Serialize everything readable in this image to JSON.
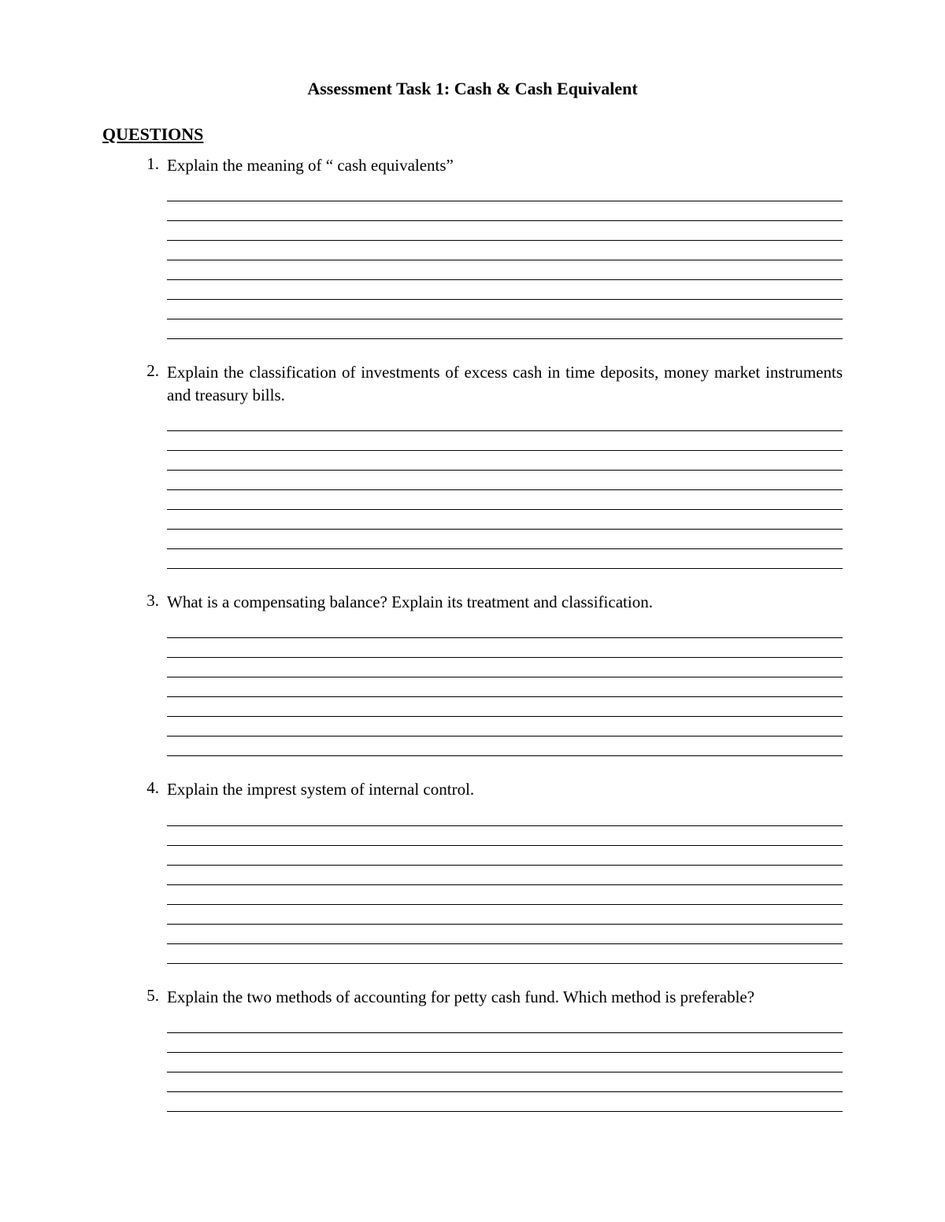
{
  "document": {
    "title": "Assessment Task 1: Cash & Cash Equivalent",
    "section_header": "QUESTIONS",
    "font_family": "Times New Roman",
    "text_color": "#000000",
    "background_color": "#ffffff",
    "title_fontsize": 22,
    "body_fontsize": 21,
    "questions": [
      {
        "number": "1.",
        "text": "Explain the meaning of “ cash equivalents”",
        "answer_lines": 8
      },
      {
        "number": "2.",
        "text": "Explain the classification of investments of excess cash in time deposits, money market instruments and treasury bills.",
        "answer_lines": 8
      },
      {
        "number": "3.",
        "text": "What is a compensating balance? Explain its treatment and classification.",
        "answer_lines": 7
      },
      {
        "number": "4.",
        "text": "Explain the imprest system of internal control.",
        "answer_lines": 8
      },
      {
        "number": "5.",
        "text": "Explain the two methods of accounting for petty cash fund. Which method is preferable?",
        "answer_lines": 5
      }
    ],
    "line_style": {
      "color": "#000000",
      "thickness": 1.5,
      "spacing": 25
    }
  }
}
